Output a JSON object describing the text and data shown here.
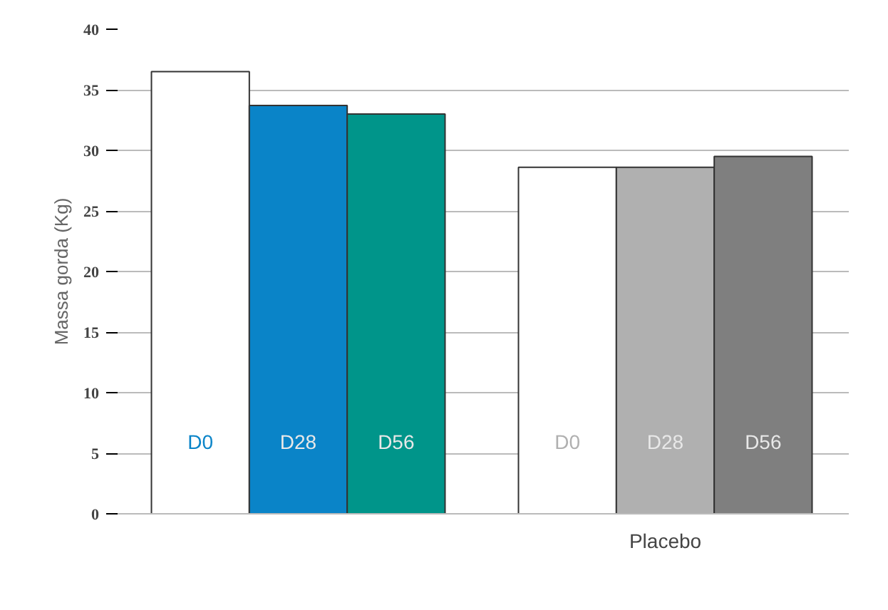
{
  "chart_data": {
    "type": "bar",
    "ylabel": "Massa gorda (Kg)",
    "categories": [
      null,
      "Placebo"
    ],
    "series": [
      {
        "name": "D0",
        "colors": [
          "#ffffff",
          "#ffffff"
        ],
        "values": [
          36.5,
          28.6
        ]
      },
      {
        "name": "D28",
        "colors": [
          "#0a84c8",
          "#b0b0b0"
        ],
        "values": [
          33.7,
          28.6
        ]
      },
      {
        "name": "D56",
        "colors": [
          "#00958a",
          "#7f7f7f"
        ],
        "values": [
          33.0,
          29.5
        ]
      }
    ],
    "ylim": [
      0,
      40
    ],
    "yticks": [
      0,
      5,
      10,
      15,
      20,
      25,
      30,
      35,
      40
    ],
    "grid": "y"
  }
}
